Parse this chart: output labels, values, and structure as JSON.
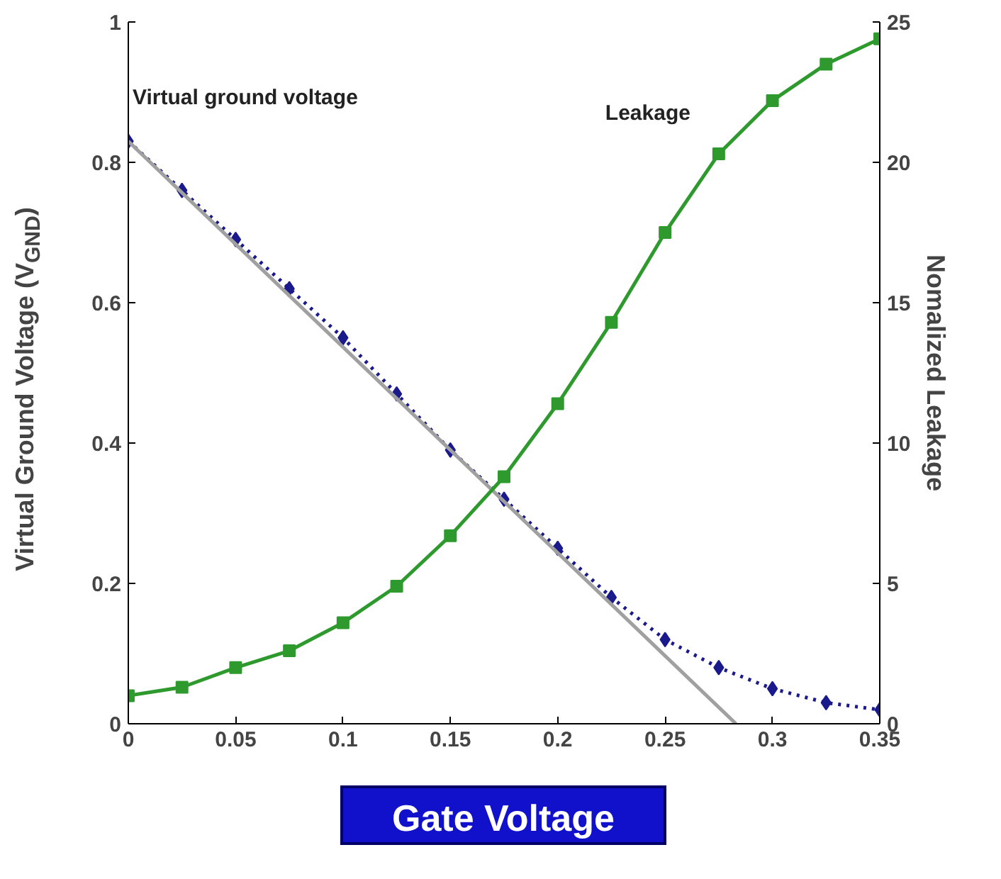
{
  "chart_data": {
    "type": "line",
    "xlabel": "Gate Voltage",
    "ylabel": "Virtual Ground Voltage (V$_{GND}$)",
    "y2label": "Nomalized Leakage",
    "x": [
      0,
      0.025,
      0.05,
      0.075,
      0.1,
      0.125,
      0.15,
      0.175,
      0.2,
      0.225,
      0.25,
      0.275,
      0.3,
      0.325,
      0.35
    ],
    "series": [
      {
        "name": "Virtual ground voltage",
        "color": "#1a1a8c",
        "marker": "diamond",
        "line_style": "dotted",
        "values": [
          0.83,
          0.76,
          0.69,
          0.62,
          0.55,
          0.47,
          0.39,
          0.32,
          0.25,
          0.18,
          0.12,
          0.08,
          0.05,
          0.03,
          0.02
        ]
      },
      {
        "color": "#a0a0a0",
        "marker": "none",
        "line_style": "solid",
        "x": [
          0,
          0.283
        ],
        "values": [
          0.83,
          0
        ]
      },
      {
        "name": "Leakage",
        "color": "#2e9a2e",
        "marker": "square",
        "line_style": "solid",
        "axis": "y2",
        "values": [
          1.0,
          1.3,
          2.0,
          2.6,
          3.6,
          4.9,
          6.7,
          8.8,
          11.4,
          14.3,
          17.5,
          20.3,
          22.2,
          23.5,
          24.4
        ]
      }
    ],
    "xlim": [
      0,
      0.35
    ],
    "xticks": [
      0,
      0.05,
      0.1,
      0.15,
      0.2,
      0.25,
      0.3,
      0.35
    ],
    "ylim": [
      0,
      1
    ],
    "yticks": [
      0,
      0.2,
      0.4,
      0.6,
      0.8,
      1
    ],
    "y2lim": [
      0,
      25
    ],
    "y2ticks": [
      0,
      5,
      10,
      15,
      20,
      25
    ],
    "grid": false
  }
}
